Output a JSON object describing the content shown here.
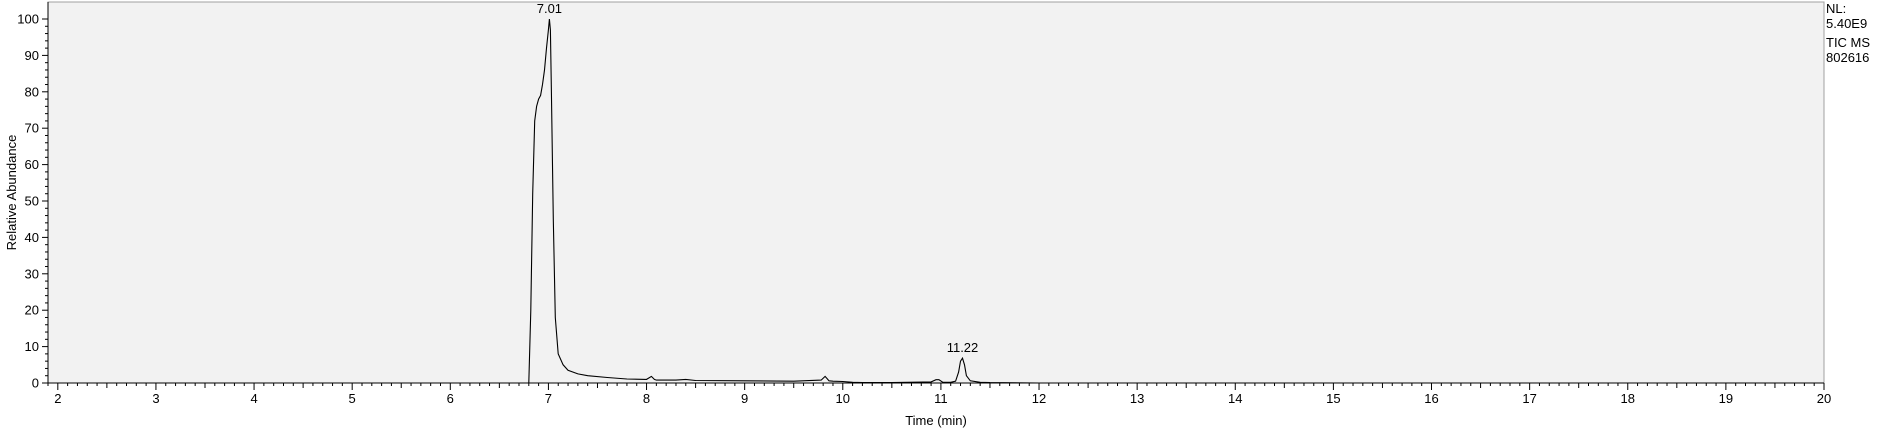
{
  "chart_data": {
    "type": "line",
    "xlabel": "Time (min)",
    "ylabel": "Relative Abundance",
    "xlim": [
      1.9,
      20.0
    ],
    "ylim": [
      0,
      100
    ],
    "x_ticks": [
      2,
      3,
      4,
      5,
      6,
      7,
      8,
      9,
      10,
      11,
      12,
      13,
      14,
      15,
      16,
      17,
      18,
      19,
      20
    ],
    "y_ticks": [
      0,
      10,
      20,
      30,
      40,
      50,
      60,
      70,
      80,
      90,
      100
    ],
    "grid": false,
    "background": "#f2f2f2",
    "line_color": "#000000",
    "annotations": [
      {
        "x": 7.01,
        "y": 100,
        "text": "7.01"
      },
      {
        "x": 11.22,
        "y": 6.8,
        "text": "11.22"
      }
    ],
    "series": [
      {
        "x": [
          1.9,
          6.8,
          6.82,
          6.84,
          6.86,
          6.88,
          6.9,
          6.92,
          6.94,
          6.96,
          6.98,
          7.0,
          7.01,
          7.02,
          7.03,
          7.05,
          7.07,
          7.1,
          7.15,
          7.2,
          7.3,
          7.4,
          7.6,
          7.8,
          8.0,
          8.05,
          8.08,
          8.1,
          8.3,
          8.4,
          8.5,
          9.0,
          9.5,
          9.78,
          9.82,
          9.84,
          9.86,
          9.9,
          10.0,
          10.1,
          10.2,
          10.5,
          10.9,
          10.95,
          10.98,
          11.02,
          11.1,
          11.15,
          11.18,
          11.2,
          11.22,
          11.24,
          11.26,
          11.3,
          11.4,
          11.5,
          12.0,
          20.0
        ],
        "values": [
          0,
          0,
          20,
          52,
          72,
          76,
          78,
          79,
          82,
          86,
          92,
          97,
          100,
          97,
          80,
          45,
          18,
          8,
          5,
          3.5,
          2.5,
          2.0,
          1.5,
          1.1,
          1.0,
          1.8,
          1.0,
          0.8,
          0.8,
          1.0,
          0.7,
          0.6,
          0.5,
          0.8,
          1.8,
          1.2,
          0.6,
          0.5,
          0.4,
          0.2,
          0.1,
          0.1,
          0.3,
          0.9,
          0.9,
          0.2,
          0.2,
          0.5,
          3,
          6,
          6.8,
          5,
          2,
          0.6,
          0.2,
          0.1,
          0,
          0
        ]
      }
    ]
  },
  "info": {
    "nl_label": "NL:",
    "nl_value": "5.40E9",
    "trace_label": "TIC  MS",
    "sample_id": "802616"
  }
}
